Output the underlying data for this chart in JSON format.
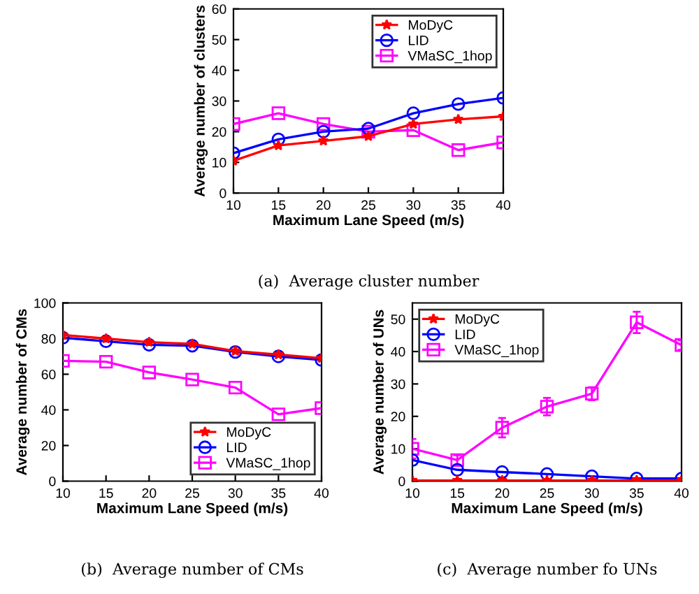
{
  "chart_data": [
    {
      "type": "line",
      "xlabel": "Maximum Lane Speed (m/s)",
      "ylabel": "Average number of clusters",
      "x": [
        10,
        15,
        20,
        25,
        30,
        35,
        40
      ],
      "xlim": [
        10,
        40
      ],
      "xticks": [
        10,
        15,
        20,
        25,
        30,
        35,
        40
      ],
      "ylim": [
        0,
        60
      ],
      "yticks": [
        0,
        10,
        20,
        30,
        40,
        50,
        60
      ],
      "grid": false,
      "legend": "top right",
      "annotations": [
        "(a)  Average cluster number"
      ],
      "series": [
        {
          "name": "MoDyC",
          "color": "#ff0000",
          "marker": "star",
          "values": [
            10.5,
            15.5,
            17,
            18.5,
            22.5,
            24,
            25
          ]
        },
        {
          "name": "LID",
          "color": "#0000ff",
          "marker": "circle",
          "values": [
            13,
            17.5,
            20,
            21,
            26,
            29,
            31
          ]
        },
        {
          "name": "VMaSC_1hop",
          "color": "#ff00ff",
          "marker": "square",
          "values": [
            22.5,
            26,
            22.5,
            20,
            20.5,
            14,
            16.5
          ]
        }
      ]
    },
    {
      "type": "line",
      "xlabel": "Maximum Lane Speed (m/s)",
      "ylabel": "Average number of CMs",
      "x": [
        10,
        15,
        20,
        25,
        30,
        35,
        40
      ],
      "xlim": [
        10,
        40
      ],
      "xticks": [
        10,
        15,
        20,
        25,
        30,
        35,
        40
      ],
      "ylim": [
        0,
        100
      ],
      "yticks": [
        0,
        20,
        40,
        60,
        80,
        100
      ],
      "grid": false,
      "legend": "bottom right",
      "annotations": [
        "(b)  Average number of CMs"
      ],
      "series": [
        {
          "name": "MoDyC",
          "color": "#ff0000",
          "marker": "star",
          "values": [
            82,
            80,
            78,
            77,
            73,
            71,
            69
          ]
        },
        {
          "name": "LID",
          "color": "#0000ff",
          "marker": "circle",
          "values": [
            80.5,
            78.5,
            76.5,
            76,
            72.5,
            70,
            68
          ]
        },
        {
          "name": "VMaSC_1hop",
          "color": "#ff00ff",
          "marker": "square",
          "values": [
            67.5,
            67,
            61,
            57,
            52.5,
            37.5,
            41
          ]
        }
      ]
    },
    {
      "type": "line",
      "xlabel": "Maximum Lane Speed (m/s)",
      "ylabel": "Average number of UNs",
      "x": [
        10,
        15,
        20,
        25,
        30,
        35,
        40
      ],
      "xlim": [
        10,
        40
      ],
      "xticks": [
        10,
        15,
        20,
        25,
        30,
        35,
        40
      ],
      "ylim": [
        0,
        55
      ],
      "yticks": [
        0,
        10,
        20,
        30,
        40,
        50
      ],
      "grid": false,
      "legend": "top left",
      "annotations": [
        "(c)  Average number fo UNs"
      ],
      "series": [
        {
          "name": "MoDyC",
          "color": "#ff0000",
          "marker": "star",
          "values": [
            0.2,
            0.2,
            0.2,
            0.2,
            0.2,
            0.2,
            0.2
          ]
        },
        {
          "name": "LID",
          "color": "#0000ff",
          "marker": "circle",
          "values": [
            6.5,
            3.5,
            2.8,
            2.2,
            1.5,
            0.8,
            0.8
          ]
        },
        {
          "name": "VMaSC_1hop",
          "color": "#ff00ff",
          "marker": "square",
          "values": [
            10,
            6.5,
            16.5,
            23,
            27,
            49,
            42
          ],
          "errors": [
            3,
            1.5,
            3,
            2.7,
            2,
            3.3,
            1.5
          ]
        }
      ]
    }
  ]
}
